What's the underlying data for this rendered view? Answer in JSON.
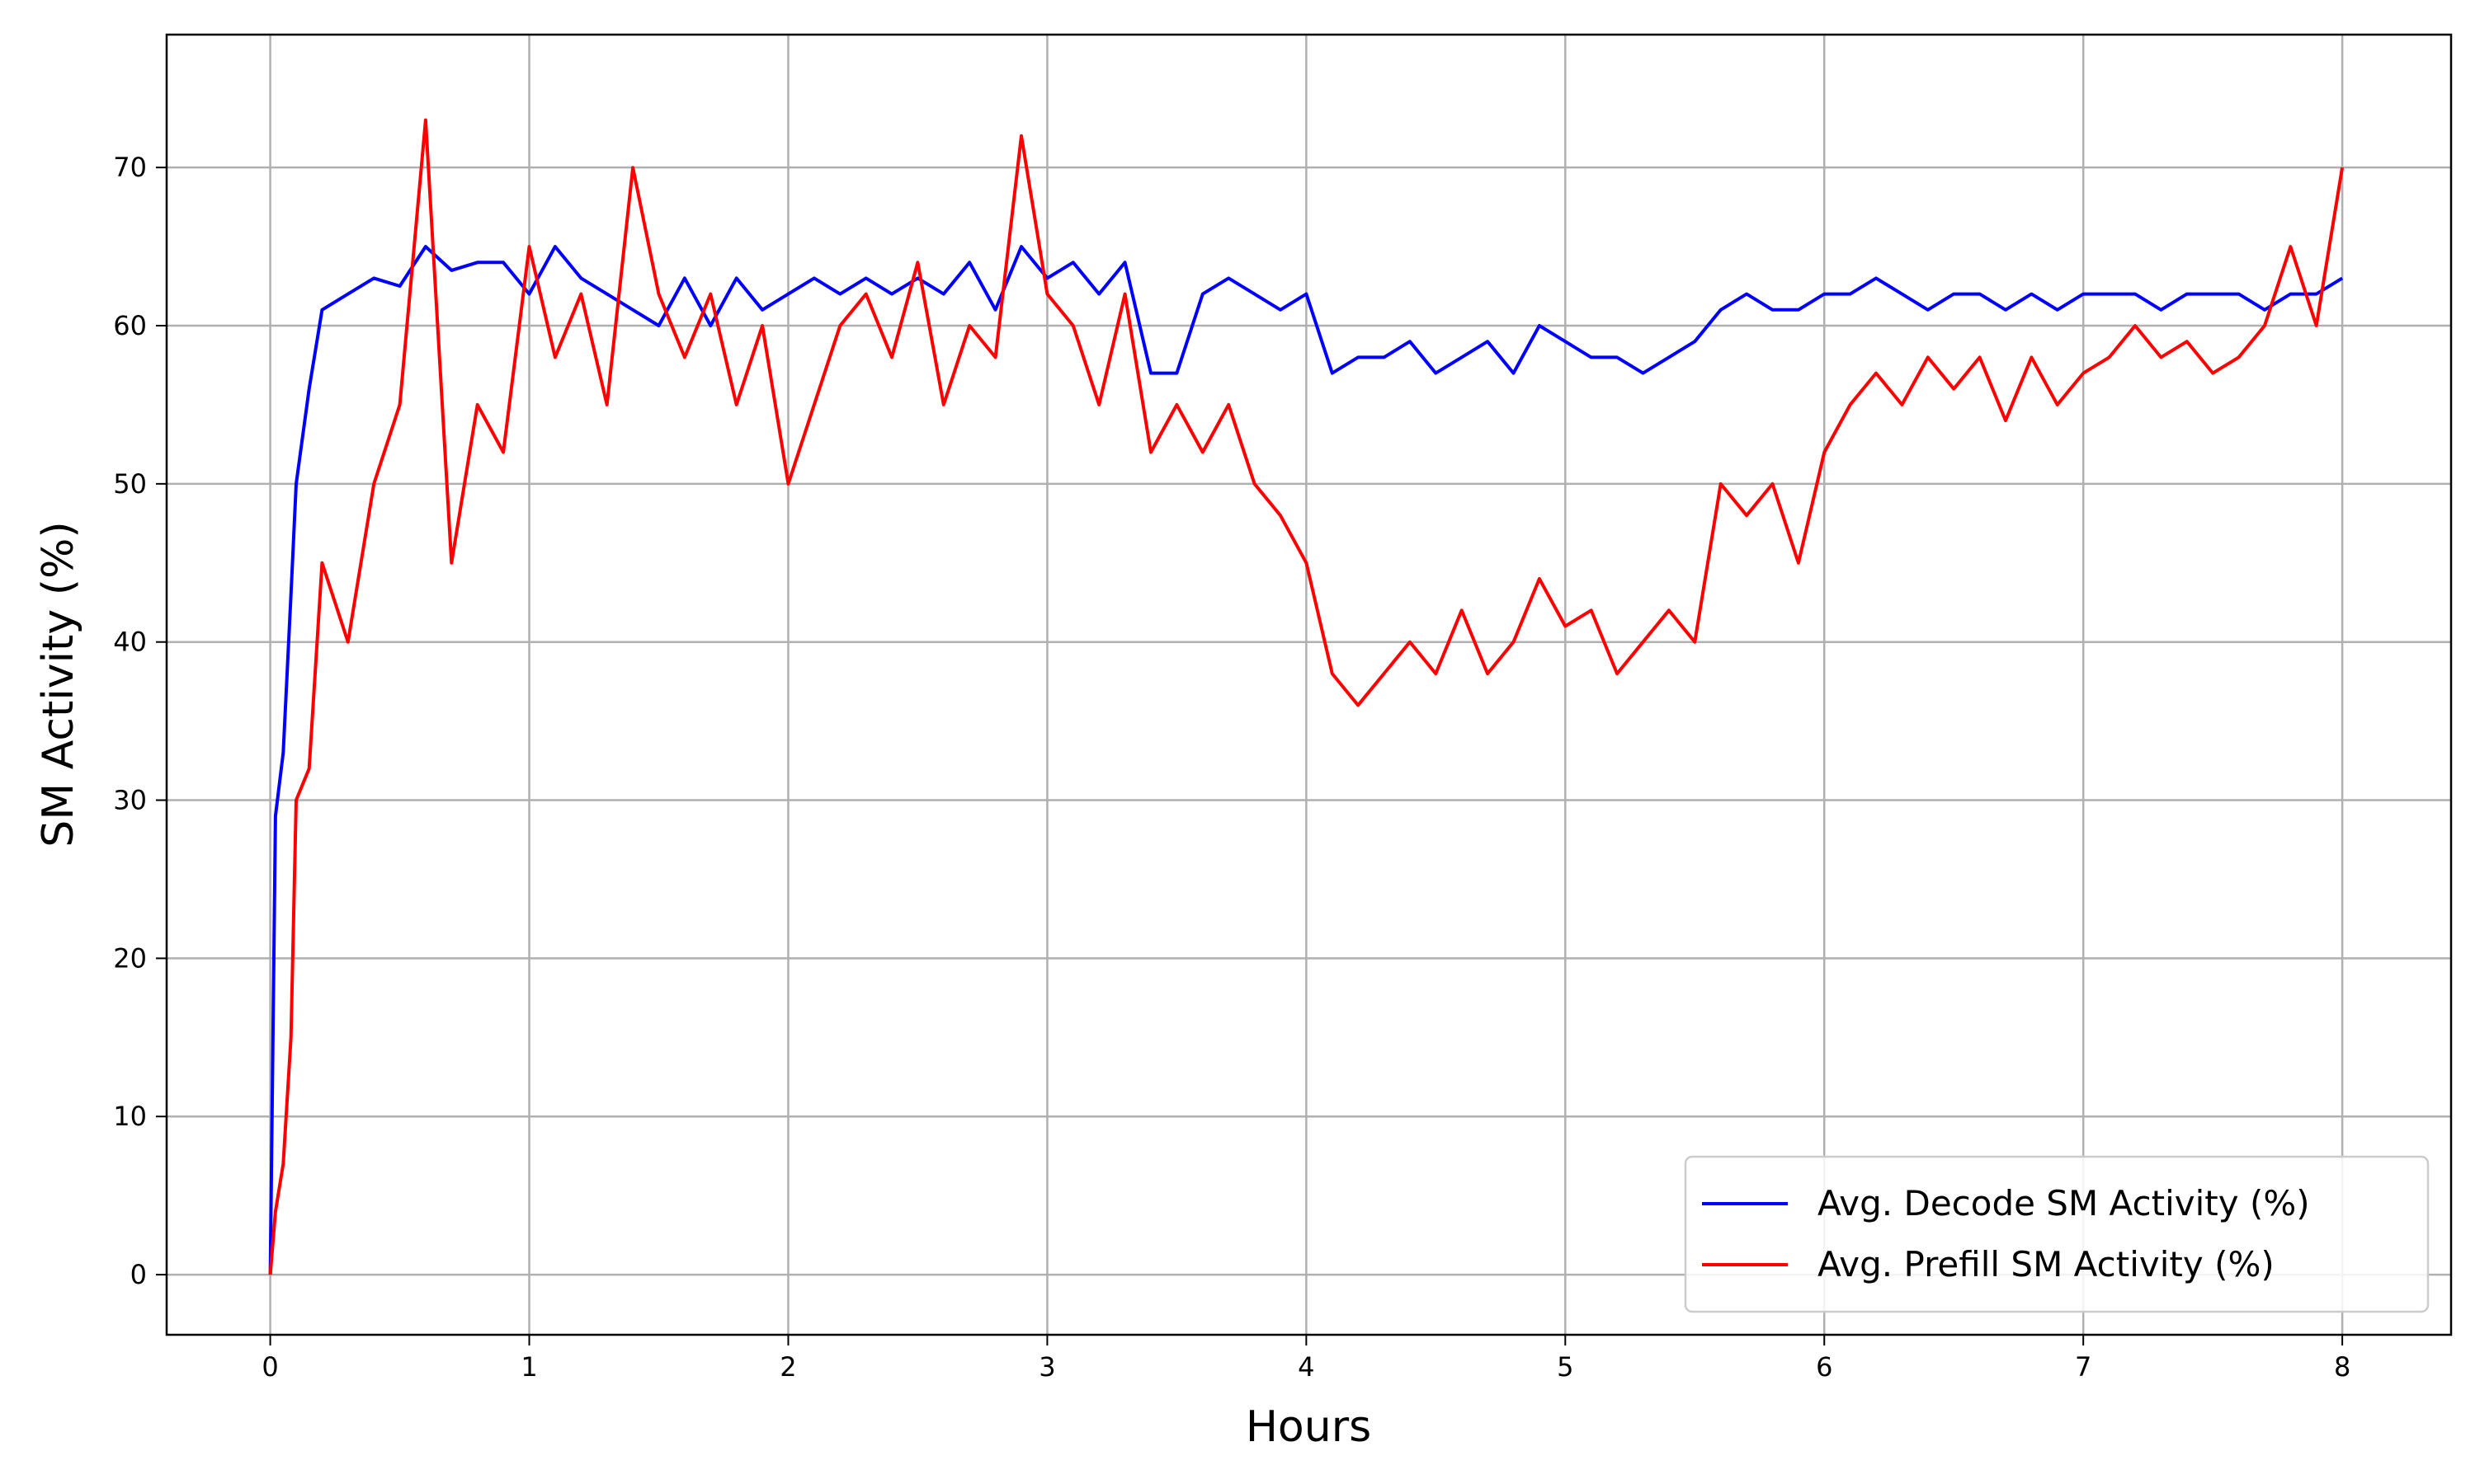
{
  "chart_data": {
    "type": "line",
    "xlabel": "Hours",
    "ylabel": "SM Activity (%)",
    "x": [
      0,
      0.02,
      0.05,
      0.08,
      0.1,
      0.15,
      0.2,
      0.3,
      0.4,
      0.5,
      0.6,
      0.7,
      0.8,
      0.9,
      1.0,
      1.1,
      1.2,
      1.3,
      1.4,
      1.5,
      1.6,
      1.7,
      1.8,
      1.9,
      2.0,
      2.1,
      2.2,
      2.3,
      2.4,
      2.5,
      2.6,
      2.7,
      2.8,
      2.9,
      3.0,
      3.1,
      3.2,
      3.3,
      3.4,
      3.5,
      3.6,
      3.7,
      3.8,
      3.9,
      4.0,
      4.1,
      4.2,
      4.3,
      4.4,
      4.5,
      4.6,
      4.7,
      4.8,
      4.9,
      5.0,
      5.1,
      5.2,
      5.3,
      5.4,
      5.5,
      5.6,
      5.7,
      5.8,
      5.9,
      6.0,
      6.1,
      6.2,
      6.3,
      6.4,
      6.5,
      6.6,
      6.7,
      6.8,
      6.9,
      7.0,
      7.1,
      7.2,
      7.3,
      7.4,
      7.5,
      7.6,
      7.7,
      7.8,
      7.9,
      8.0
    ],
    "series": [
      {
        "name": "Avg. Decode SM Activity (%)",
        "color": "#0000ff",
        "values": [
          0,
          29,
          33,
          43,
          50,
          56,
          61,
          62,
          63,
          62.5,
          65,
          63.5,
          64,
          64,
          62,
          65,
          63,
          62,
          61,
          60,
          63,
          60,
          63,
          61,
          62,
          63,
          62,
          63,
          62,
          63,
          62,
          64,
          61,
          65,
          63,
          64,
          62,
          64,
          57,
          57,
          62,
          63,
          62,
          61,
          62,
          57,
          58,
          58,
          59,
          57,
          58,
          59,
          57,
          60,
          59,
          58,
          58,
          57,
          58,
          59,
          61,
          62,
          61,
          61,
          62,
          62,
          63,
          62,
          61,
          62,
          62,
          61,
          62,
          61,
          62,
          62,
          62,
          61,
          62,
          62,
          62,
          61,
          62,
          62,
          63
        ]
      },
      {
        "name": "Avg. Prefill SM Activity (%)",
        "color": "#ff0000",
        "values": [
          0,
          4,
          7,
          15,
          30,
          32,
          45,
          40,
          50,
          55,
          73,
          45,
          55,
          52,
          65,
          58,
          62,
          55,
          70,
          62,
          58,
          62,
          55,
          60,
          50,
          55,
          60,
          62,
          58,
          64,
          55,
          60,
          58,
          72,
          62,
          60,
          55,
          62,
          52,
          55,
          52,
          55,
          50,
          48,
          45,
          38,
          36,
          38,
          40,
          38,
          42,
          38,
          40,
          44,
          41,
          42,
          38,
          40,
          42,
          40,
          50,
          48,
          50,
          45,
          52,
          55,
          57,
          55,
          58,
          56,
          58,
          54,
          58,
          55,
          57,
          58,
          60,
          58,
          59,
          57,
          58,
          60,
          65,
          60,
          70
        ]
      }
    ],
    "xlim": [
      -0.4,
      8.42
    ],
    "ylim": [
      -3.8,
      78.4
    ],
    "xticks": [
      0,
      1,
      2,
      3,
      4,
      5,
      6,
      7,
      8
    ],
    "yticks": [
      0,
      10,
      20,
      30,
      40,
      50,
      60,
      70
    ],
    "grid": true,
    "legend": "lower right"
  }
}
